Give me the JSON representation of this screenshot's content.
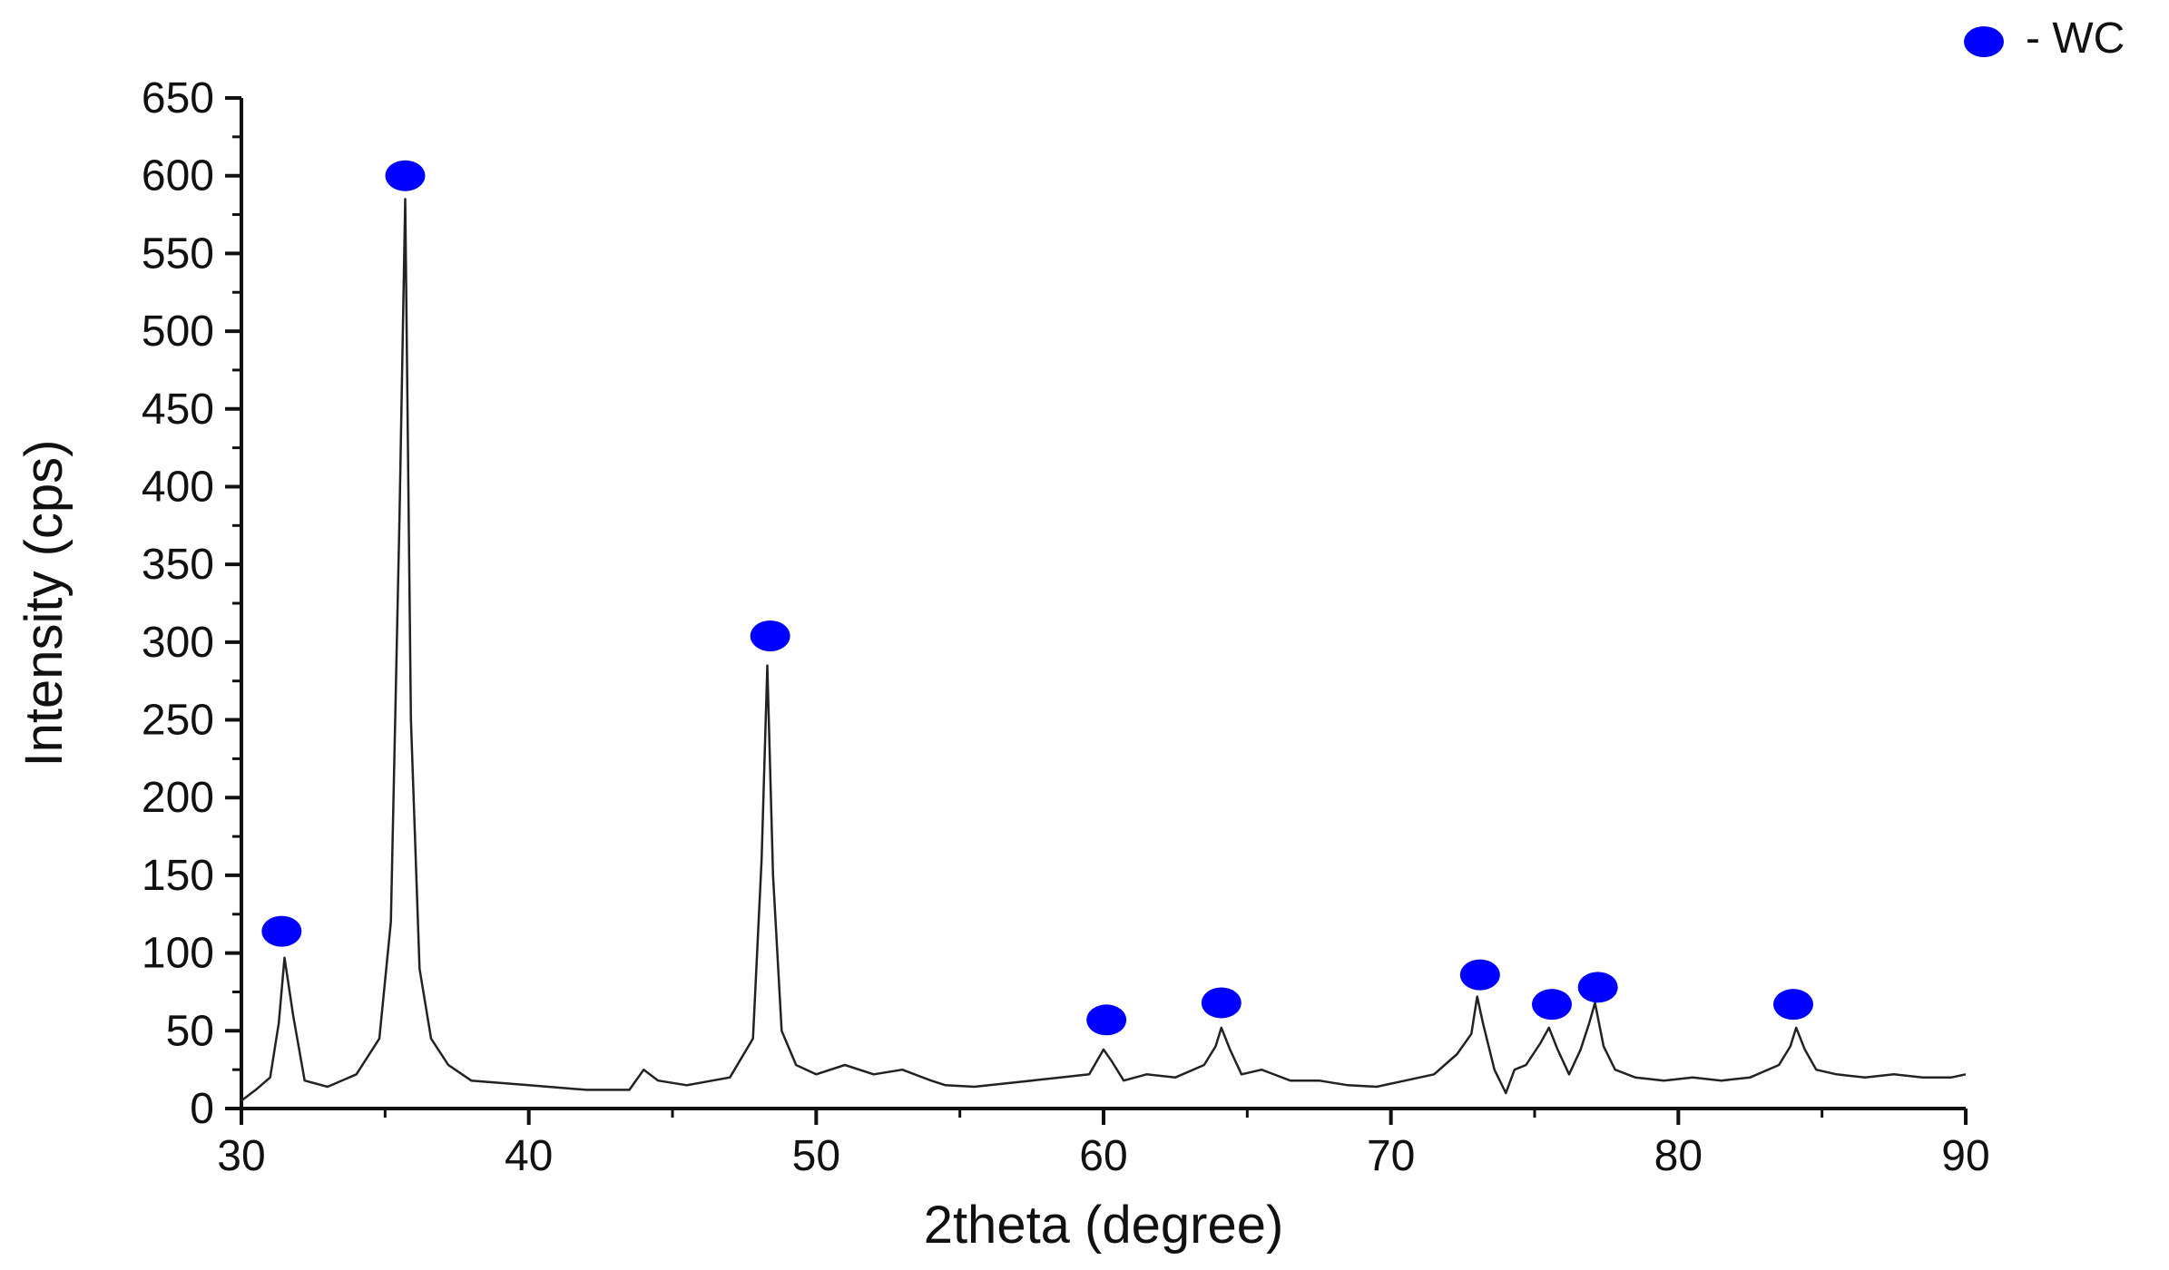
{
  "chart_data": {
    "type": "line",
    "title": "",
    "xlabel": "2theta (degree)",
    "ylabel": "Intensity (cps)",
    "xlim": [
      30,
      90
    ],
    "ylim": [
      0,
      650
    ],
    "x_ticks": [
      30,
      40,
      50,
      60,
      70,
      80,
      90
    ],
    "y_ticks": [
      0,
      50,
      100,
      150,
      200,
      250,
      300,
      350,
      400,
      450,
      500,
      550,
      600,
      650
    ],
    "grid": false,
    "legend": {
      "position": "top-right",
      "entries": [
        {
          "label": "- WC",
          "marker": "filled-ellipse",
          "color": "#0000FF"
        }
      ]
    },
    "line_color": "#222222",
    "marker_color": "#0000FF",
    "series": [
      {
        "name": "",
        "x": [
          30.0,
          30.5,
          31.0,
          31.3,
          31.5,
          31.8,
          32.2,
          33.0,
          34.0,
          34.8,
          35.2,
          35.5,
          35.7,
          35.9,
          36.2,
          36.6,
          37.2,
          38.0,
          40.0,
          42.0,
          43.5,
          44.0,
          44.5,
          45.5,
          47.0,
          47.8,
          48.1,
          48.3,
          48.5,
          48.8,
          49.3,
          50.0,
          51.0,
          52.0,
          53.0,
          54.0,
          54.5,
          55.5,
          56.5,
          57.5,
          58.5,
          59.5,
          60.0,
          60.3,
          60.7,
          61.5,
          62.5,
          63.5,
          63.9,
          64.1,
          64.4,
          64.8,
          65.5,
          66.5,
          67.5,
          68.5,
          69.5,
          70.5,
          71.5,
          72.3,
          72.8,
          73.0,
          73.2,
          73.6,
          74.0,
          74.3,
          74.7,
          75.2,
          75.5,
          75.8,
          76.2,
          76.6,
          76.9,
          77.1,
          77.4,
          77.8,
          78.5,
          79.5,
          80.5,
          81.5,
          82.5,
          83.5,
          83.9,
          84.1,
          84.4,
          84.8,
          85.5,
          86.5,
          87.5,
          88.5,
          89.5,
          90.0
        ],
        "y": [
          5,
          12,
          20,
          55,
          97,
          60,
          18,
          14,
          22,
          45,
          120,
          380,
          585,
          250,
          90,
          45,
          28,
          18,
          15,
          12,
          12,
          25,
          18,
          15,
          20,
          45,
          160,
          285,
          150,
          50,
          28,
          22,
          28,
          22,
          25,
          18,
          15,
          14,
          16,
          18,
          20,
          22,
          38,
          30,
          18,
          22,
          20,
          28,
          40,
          52,
          38,
          22,
          25,
          18,
          18,
          15,
          14,
          18,
          22,
          35,
          48,
          72,
          55,
          25,
          10,
          25,
          28,
          42,
          52,
          38,
          22,
          38,
          55,
          68,
          40,
          25,
          20,
          18,
          20,
          18,
          20,
          28,
          40,
          52,
          38,
          25,
          22,
          20,
          22,
          20,
          20,
          22
        ]
      }
    ],
    "peak_markers": [
      {
        "x": 31.4,
        "y": 114
      },
      {
        "x": 35.7,
        "y": 600
      },
      {
        "x": 48.4,
        "y": 304
      },
      {
        "x": 60.1,
        "y": 57
      },
      {
        "x": 64.1,
        "y": 68
      },
      {
        "x": 73.1,
        "y": 86
      },
      {
        "x": 75.6,
        "y": 67
      },
      {
        "x": 77.2,
        "y": 78
      },
      {
        "x": 84.0,
        "y": 67
      }
    ]
  }
}
